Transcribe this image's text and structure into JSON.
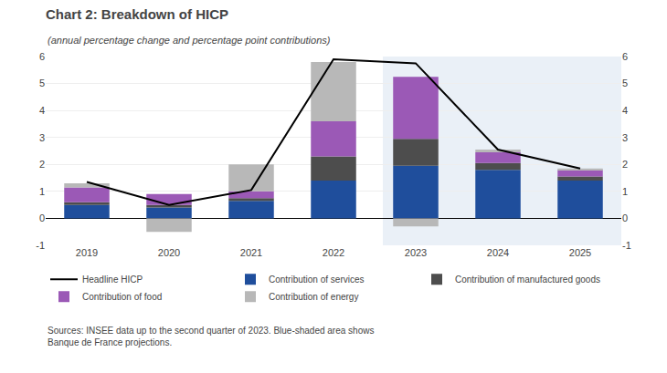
{
  "chart_data": {
    "type": "bar",
    "stacked": true,
    "title": "Chart 2: Breakdown of HICP",
    "subtitle": "(annual percentage change and percentage point contributions)",
    "source": "Sources: INSEE data up to the second quarter of 2023. Blue-shaded area shows\nBanque de France projections.",
    "categories": [
      "2019",
      "2020",
      "2021",
      "2022",
      "2023",
      "2024",
      "2025"
    ],
    "series": [
      {
        "name": "Headline HICP",
        "type": "line",
        "color": "#000000",
        "values": [
          1.35,
          0.5,
          1.05,
          5.9,
          5.75,
          2.55,
          1.85
        ]
      },
      {
        "name": "Contribution of services",
        "type": "bar",
        "color": "#1f4e9c",
        "values": [
          0.5,
          0.4,
          0.65,
          1.4,
          1.95,
          1.8,
          1.4
        ]
      },
      {
        "name": "Contribution of manufactured goods",
        "type": "bar",
        "color": "#4d4d4d",
        "values": [
          0.1,
          0.1,
          0.1,
          0.9,
          1.0,
          0.25,
          0.15
        ]
      },
      {
        "name": "Contribution of food",
        "type": "bar",
        "color": "#9b59b6",
        "values": [
          0.55,
          0.4,
          0.25,
          1.3,
          2.3,
          0.4,
          0.25
        ]
      },
      {
        "name": "Contribution of energy",
        "type": "bar",
        "color": "#b8b8b8",
        "values": [
          0.15,
          -0.5,
          1.0,
          2.2,
          -0.3,
          0.1,
          0.05
        ]
      }
    ],
    "projection": {
      "start": "2023",
      "color": "#dce6f1"
    },
    "ylim": [
      -1,
      6
    ],
    "yticks": [
      -1,
      0,
      1,
      2,
      3,
      4,
      5,
      6
    ],
    "y2lim": [
      -1,
      6
    ],
    "y2ticks": [
      -1,
      0,
      1,
      2,
      3,
      4,
      5,
      6
    ],
    "grid": true,
    "legend": "bottom"
  }
}
